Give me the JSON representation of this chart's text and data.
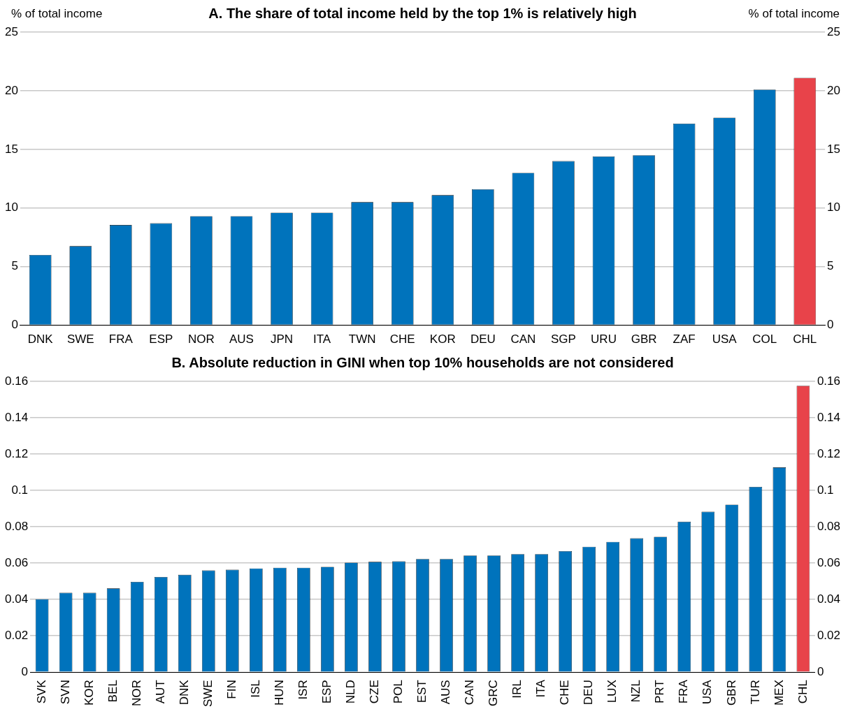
{
  "chart_data": [
    {
      "type": "bar",
      "title": "A. The share of total income held by the top 1% is relatively high",
      "ylabel": "% of total income",
      "y2label": "% of total income",
      "categories": [
        "DNK",
        "SWE",
        "FRA",
        "ESP",
        "NOR",
        "AUS",
        "JPN",
        "ITA",
        "TWN",
        "CHE",
        "KOR",
        "DEU",
        "CAN",
        "SGP",
        "URU",
        "GBR",
        "ZAF",
        "USA",
        "COL",
        "CHL"
      ],
      "values": [
        6.0,
        6.75,
        8.55,
        8.7,
        9.3,
        9.3,
        9.6,
        9.6,
        10.5,
        10.5,
        11.1,
        11.6,
        13.0,
        14.0,
        14.4,
        14.5,
        17.2,
        17.7,
        20.1,
        21.1
      ],
      "colors": [
        "#0073bc",
        "#0073bc",
        "#0073bc",
        "#0073bc",
        "#0073bc",
        "#0073bc",
        "#0073bc",
        "#0073bc",
        "#0073bc",
        "#0073bc",
        "#0073bc",
        "#0073bc",
        "#0073bc",
        "#0073bc",
        "#0073bc",
        "#0073bc",
        "#0073bc",
        "#0073bc",
        "#0073bc",
        "#e8434a"
      ],
      "ylim": [
        0,
        25
      ],
      "yticks": [
        0,
        5,
        10,
        15,
        20,
        25
      ],
      "y2lim": [
        0,
        25
      ],
      "y2ticks": [
        0,
        5,
        10,
        15,
        20,
        25
      ],
      "grid": "y",
      "legend": false
    },
    {
      "type": "bar",
      "title": "B. Absolute reduction in GINI when top 10% households are not considered",
      "categories": [
        "SVK",
        "SVN",
        "KOR",
        "BEL",
        "NOR",
        "AUT",
        "DNK",
        "SWE",
        "FIN",
        "ISL",
        "HUN",
        "ISR",
        "ESP",
        "NLD",
        "CZE",
        "POL",
        "EST",
        "AUS",
        "CAN",
        "GRC",
        "IRL",
        "ITA",
        "CHE",
        "DEU",
        "LUX",
        "NZL",
        "PRT",
        "FRA",
        "USA",
        "GBR",
        "TUR",
        "MEX",
        "CHL"
      ],
      "values": [
        0.0402,
        0.0437,
        0.0437,
        0.0461,
        0.0497,
        0.0524,
        0.0536,
        0.056,
        0.0564,
        0.0571,
        0.0575,
        0.0575,
        0.058,
        0.0603,
        0.0607,
        0.061,
        0.0623,
        0.0623,
        0.0642,
        0.0642,
        0.065,
        0.065,
        0.0666,
        0.069,
        0.0717,
        0.0737,
        0.0745,
        0.0828,
        0.0883,
        0.0922,
        0.102,
        0.1127,
        0.1576
      ],
      "colors": [
        "#0073bc",
        "#0073bc",
        "#0073bc",
        "#0073bc",
        "#0073bc",
        "#0073bc",
        "#0073bc",
        "#0073bc",
        "#0073bc",
        "#0073bc",
        "#0073bc",
        "#0073bc",
        "#0073bc",
        "#0073bc",
        "#0073bc",
        "#0073bc",
        "#0073bc",
        "#0073bc",
        "#0073bc",
        "#0073bc",
        "#0073bc",
        "#0073bc",
        "#0073bc",
        "#0073bc",
        "#0073bc",
        "#0073bc",
        "#0073bc",
        "#0073bc",
        "#0073bc",
        "#0073bc",
        "#0073bc",
        "#0073bc",
        "#e8434a"
      ],
      "ylim": [
        0,
        0.16
      ],
      "yticks": [
        0,
        0.02,
        0.04,
        0.06,
        0.08,
        0.1,
        0.12,
        0.14,
        0.16
      ],
      "y2lim": [
        0,
        0.16
      ],
      "y2ticks": [
        0,
        0.02,
        0.04,
        0.06,
        0.08,
        0.1,
        0.12,
        0.14,
        0.16
      ],
      "grid": "y",
      "legend": false
    }
  ]
}
